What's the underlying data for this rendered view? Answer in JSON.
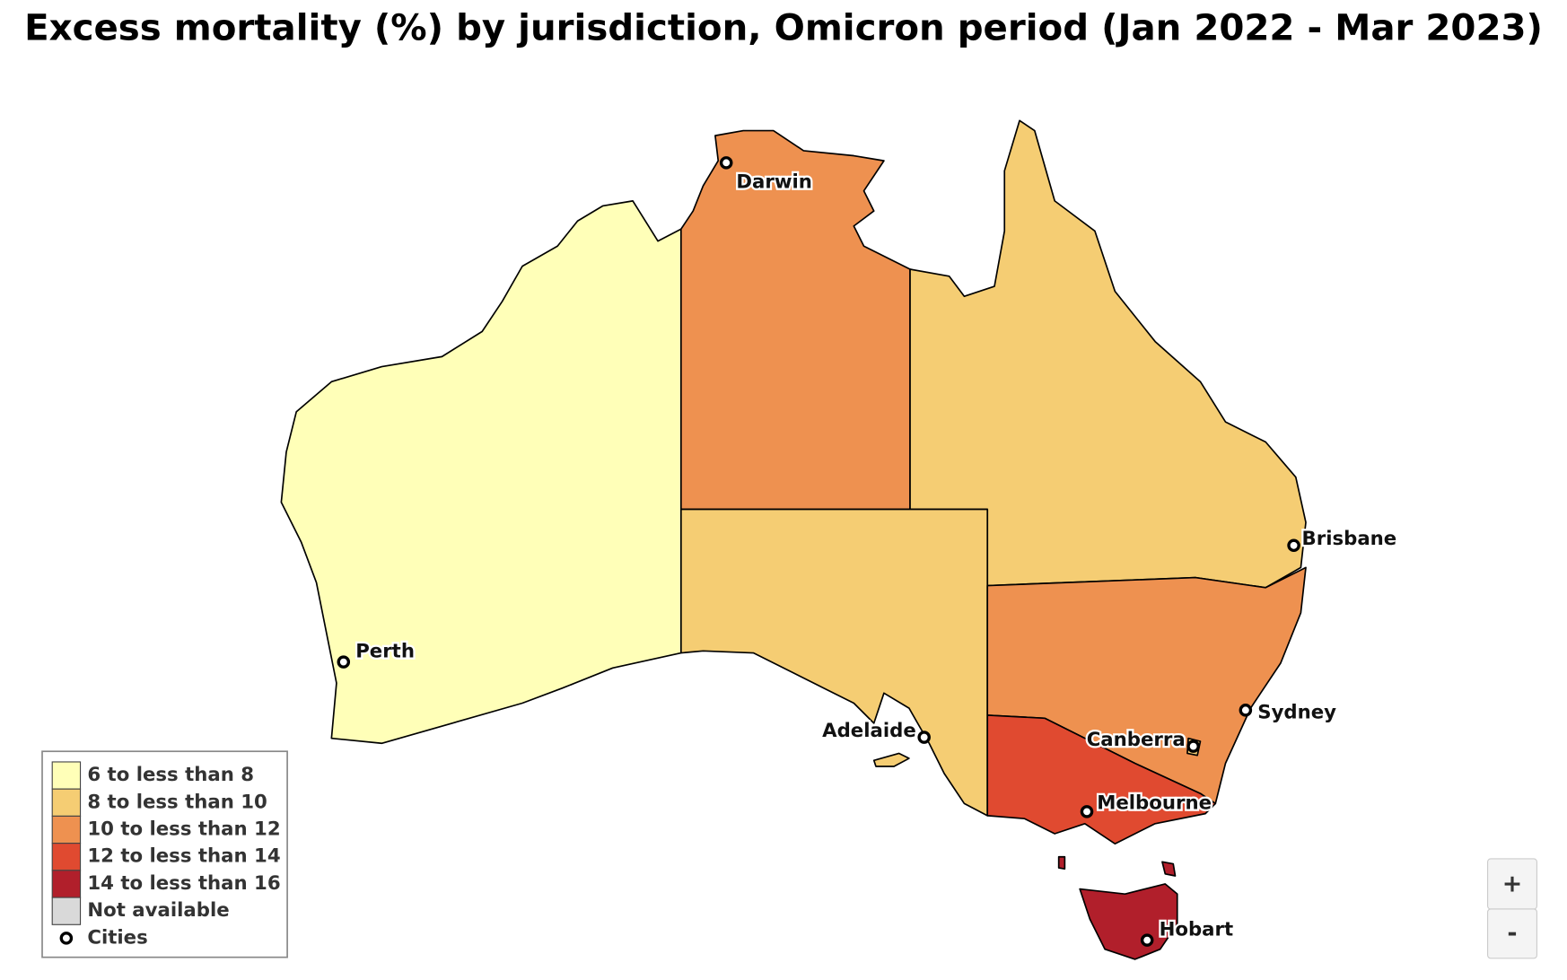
{
  "title": "Excess mortality (%) by jurisdiction, Omicron period (Jan 2022 - Mar 2023)",
  "legend": {
    "items": [
      {
        "label": "6 to less than 8",
        "color": "#ffffb8"
      },
      {
        "label": "8 to less than 10",
        "color": "#f5cd73"
      },
      {
        "label": "10 to less than 12",
        "color": "#ee9150"
      },
      {
        "label": "12 to less than 14",
        "color": "#e04a30"
      },
      {
        "label": "14 to less than 16",
        "color": "#b11f2b"
      },
      {
        "label": "Not available",
        "color": "#d9d9d9"
      }
    ],
    "cities_label": "Cities"
  },
  "cities": [
    {
      "name": "Darwin"
    },
    {
      "name": "Perth"
    },
    {
      "name": "Adelaide"
    },
    {
      "name": "Brisbane"
    },
    {
      "name": "Sydney"
    },
    {
      "name": "Canberra"
    },
    {
      "name": "Melbourne"
    },
    {
      "name": "Hobart"
    }
  ],
  "zoom": {
    "in": "+",
    "out": "-"
  }
}
